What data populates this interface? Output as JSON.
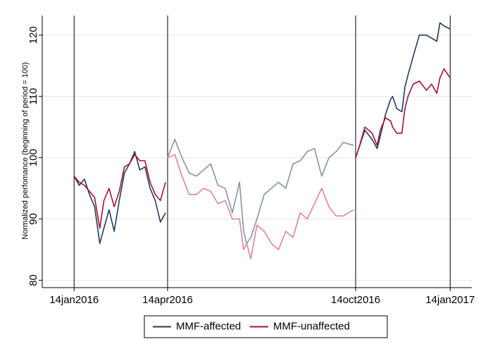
{
  "chart_data": {
    "type": "line",
    "y_label": "Normalized perfomance (beginning of period = 100)",
    "x": [
      "2016-01-14",
      "2016-01-19",
      "2016-01-24",
      "2016-01-29",
      "2016-02-03",
      "2016-02-08",
      "2016-02-12",
      "2016-02-17",
      "2016-02-22",
      "2016-02-27",
      "2016-03-03",
      "2016-03-08",
      "2016-03-13",
      "2016-03-18",
      "2016-03-23",
      "2016-03-28",
      "2016-04-02",
      "2016-04-07",
      "2016-04-12",
      "2016-04-13",
      "2016-04-14",
      "2016-04-21",
      "2016-04-28",
      "2016-05-05",
      "2016-05-12",
      "2016-05-19",
      "2016-05-26",
      "2016-06-02",
      "2016-06-09",
      "2016-06-16",
      "2016-06-23",
      "2016-06-27",
      "2016-06-30",
      "2016-07-04",
      "2016-07-10",
      "2016-07-17",
      "2016-07-24",
      "2016-07-31",
      "2016-08-07",
      "2016-08-14",
      "2016-08-21",
      "2016-08-28",
      "2016-09-04",
      "2016-09-11",
      "2016-09-18",
      "2016-09-25",
      "2016-10-02",
      "2016-10-12",
      "2016-10-13",
      "2016-10-14",
      "2016-10-17",
      "2016-10-23",
      "2016-10-30",
      "2016-11-04",
      "2016-11-07",
      "2016-11-12",
      "2016-11-17",
      "2016-11-19",
      "2016-11-23",
      "2016-11-28",
      "2016-12-01",
      "2016-12-04",
      "2016-12-09",
      "2016-12-15",
      "2016-12-22",
      "2016-12-27",
      "2017-01-01",
      "2017-01-04",
      "2017-01-08",
      "2017-01-14"
    ],
    "series": [
      {
        "name": "MMF-affected",
        "color": "#1f3b5c",
        "faded_color": "#8394aa",
        "values": [
          97,
          95.5,
          96.5,
          94,
          92,
          86,
          88.5,
          91.5,
          88,
          93,
          97.5,
          99,
          101,
          98,
          98.5,
          95,
          93,
          89.5,
          91,
          null,
          100,
          103,
          100,
          97.5,
          97,
          98,
          99,
          95.5,
          95,
          91,
          96,
          88,
          86,
          87,
          90,
          94,
          95,
          96,
          95,
          99,
          99.5,
          101,
          101.5,
          97,
          100,
          101,
          102.5,
          102,
          null,
          100,
          101.5,
          104.5,
          103,
          101.5,
          103.5,
          107,
          109.5,
          110,
          108,
          107.5,
          111.5,
          113.5,
          116.5,
          120,
          120,
          119.5,
          119,
          122,
          121.5,
          121
        ]
      },
      {
        "name": "MMF-unaffected",
        "color": "#a3123a",
        "faded_color": "#e0849a",
        "values": [
          97,
          96,
          95.5,
          94.5,
          93.5,
          88.5,
          93,
          95,
          92,
          94.5,
          98.5,
          99,
          100.5,
          99.5,
          99.5,
          96,
          94,
          93,
          96,
          null,
          100,
          100.5,
          97,
          94,
          94,
          95,
          94.5,
          92.5,
          93,
          90,
          90,
          85,
          86,
          83.5,
          89,
          88,
          86,
          85,
          88,
          87,
          91,
          90,
          92.5,
          95,
          92,
          90.5,
          90.5,
          91.5,
          null,
          100,
          101.5,
          105,
          104,
          102,
          104.5,
          106.5,
          106,
          105,
          104,
          104,
          108,
          110,
          112,
          112.5,
          111,
          112,
          110.5,
          113,
          114.5,
          113
        ]
      }
    ],
    "faded_between": [
      "2016-04-14",
      "2016-10-12"
    ],
    "xlim": [
      "2015-12-14",
      "2017-02-04"
    ],
    "xticks": [
      {
        "value": "2016-01-14",
        "label": "14jan2016"
      },
      {
        "value": "2016-04-14",
        "label": "14apr2016"
      },
      {
        "value": "2016-10-14",
        "label": "14oct2016"
      },
      {
        "value": "2017-01-14",
        "label": "14jan2017"
      }
    ],
    "ylim": [
      78.8,
      123.2
    ],
    "yticks": [
      80,
      90,
      100,
      110,
      120
    ],
    "grid": true,
    "legend": "bottom"
  }
}
